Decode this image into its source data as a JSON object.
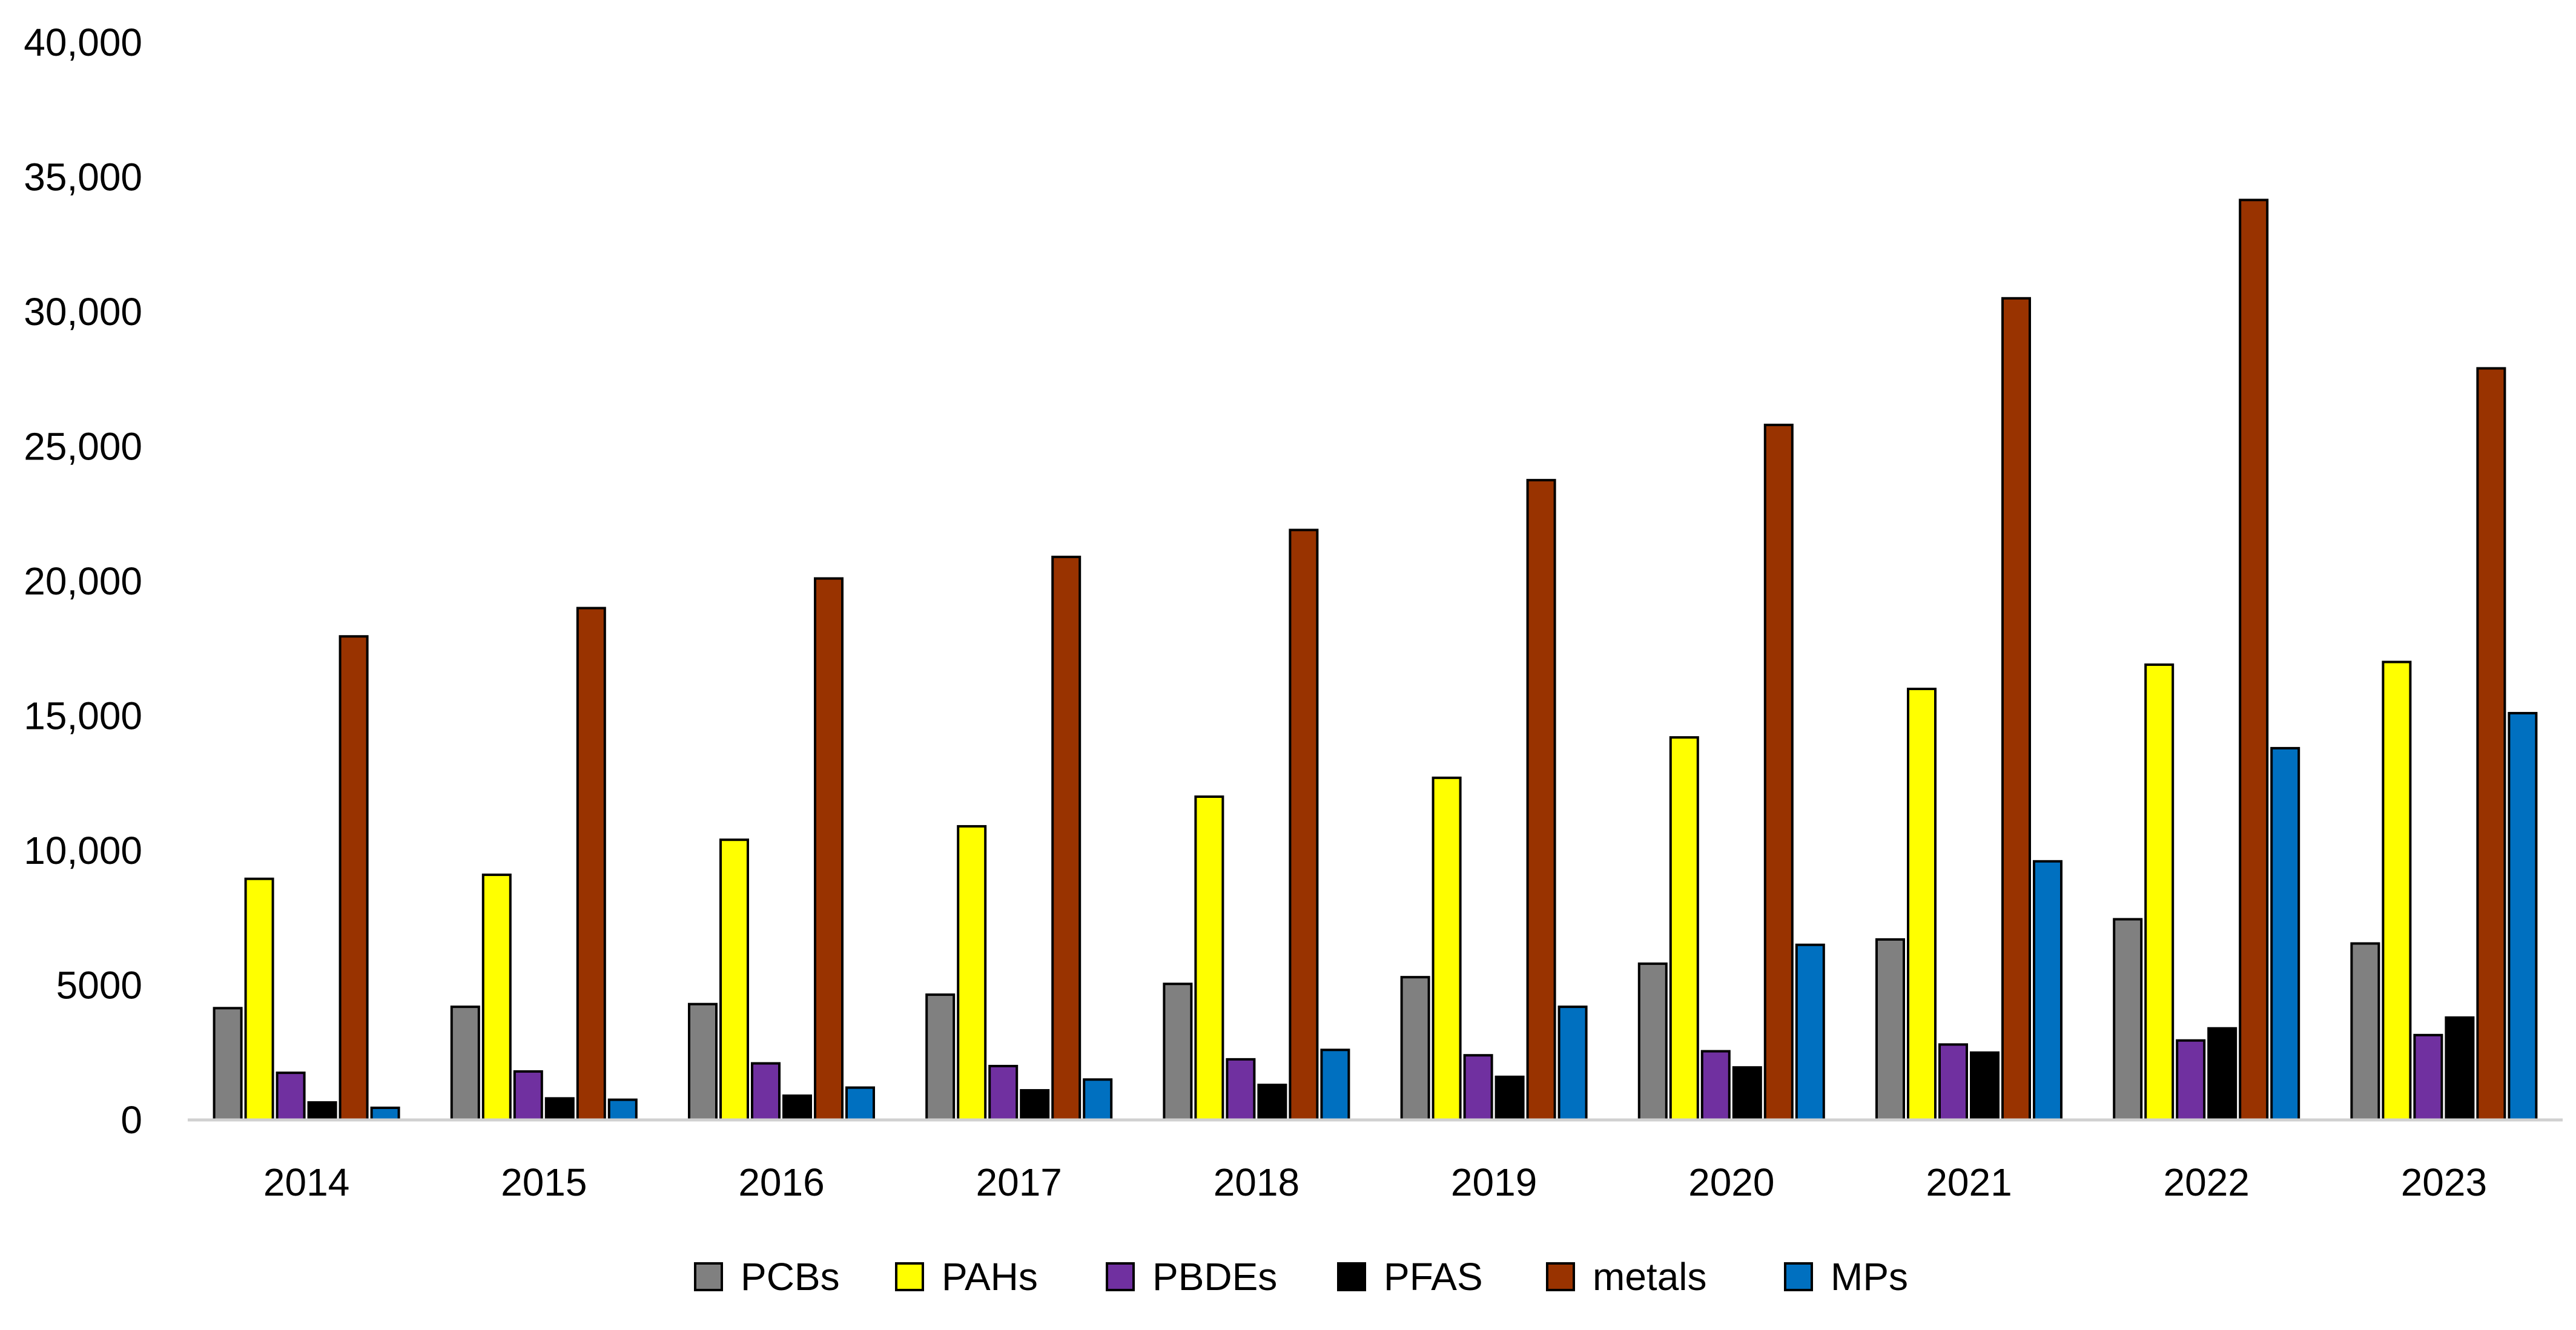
{
  "chart_data": {
    "type": "bar",
    "title": "",
    "xlabel": "",
    "ylabel": "",
    "ylim": [
      0,
      40000
    ],
    "ytick_values": [
      0,
      5000,
      10000,
      15000,
      20000,
      25000,
      30000,
      35000,
      40000
    ],
    "ytick_labels": [
      "0",
      "5000",
      "10,000",
      "15,000",
      "20,000",
      "25,000",
      "30,000",
      "35,000",
      "40,000"
    ],
    "grid": false,
    "legend_position": "bottom",
    "categories": [
      "2014",
      "2015",
      "2016",
      "2017",
      "2018",
      "2019",
      "2020",
      "2021",
      "2022",
      "2023"
    ],
    "series": [
      {
        "name": "PCBs",
        "color": "#808080",
        "values": [
          4150,
          4200,
          4300,
          4650,
          5050,
          5300,
          5800,
          6700,
          7450,
          6550
        ]
      },
      {
        "name": "PAHs",
        "color": "#ffff00",
        "values": [
          8950,
          9100,
          10400,
          10900,
          12000,
          12700,
          14200,
          16000,
          16900,
          17000
        ]
      },
      {
        "name": "PBDEs",
        "color": "#7030a0",
        "values": [
          1750,
          1800,
          2100,
          2000,
          2250,
          2400,
          2550,
          2800,
          2950,
          3150
        ]
      },
      {
        "name": "PFAS",
        "color": "#000000",
        "values": [
          650,
          800,
          900,
          1100,
          1300,
          1600,
          1950,
          2500,
          3400,
          3800
        ]
      },
      {
        "name": "metals",
        "color": "#993300",
        "values": [
          17950,
          19000,
          20100,
          20900,
          21900,
          23750,
          25800,
          30500,
          34150,
          27900
        ]
      },
      {
        "name": "MPs",
        "color": "#0070c0",
        "values": [
          450,
          750,
          1200,
          1500,
          2600,
          4200,
          6500,
          9600,
          13800,
          15100
        ]
      }
    ]
  }
}
